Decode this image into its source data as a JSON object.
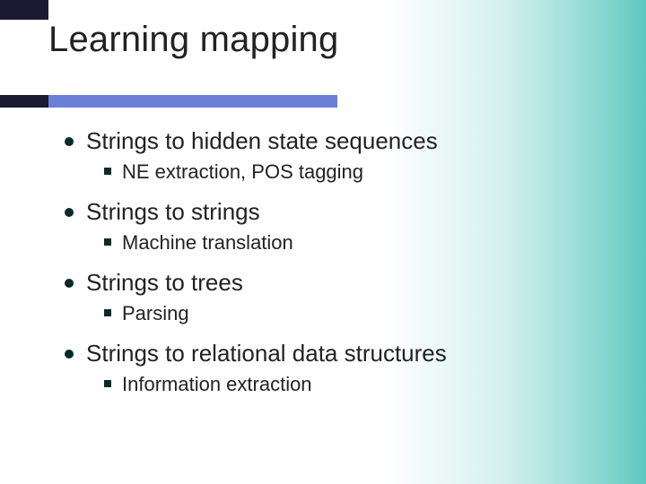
{
  "slide": {
    "title": "Learning mapping",
    "title_color": "#222222",
    "title_fontsize": 40,
    "main_fontsize": 26,
    "sub_fontsize": 22,
    "bullet_color": "#0a2a2a",
    "divider_bar1_color": "#1a1a33",
    "divider_bar2_color": "#6b7fd7",
    "background_gradient": [
      "#ffffff",
      "#d4f0ee",
      "#8fd9d3",
      "#5ec8c0"
    ],
    "items": [
      {
        "text": "Strings to hidden state sequences",
        "sub": [
          "NE extraction, POS tagging"
        ]
      },
      {
        "text": "Strings to strings",
        "sub": [
          "Machine translation"
        ]
      },
      {
        "text": "Strings to trees",
        "sub": [
          "Parsing"
        ]
      },
      {
        "text": "Strings to relational data structures",
        "sub": [
          "Information extraction"
        ]
      }
    ]
  }
}
